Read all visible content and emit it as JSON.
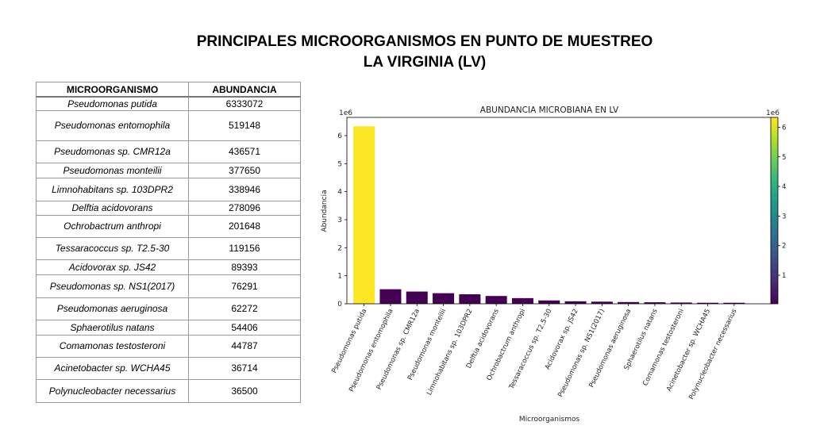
{
  "page": {
    "title_line1": "PRINCIPALES MICROORGANISMOS EN PUNTO DE MUESTREO",
    "title_line2": "LA VIRGINIA (LV)"
  },
  "table": {
    "headers": [
      "MICROORGANISMO",
      "ABUNDANCIA"
    ],
    "rows": [
      {
        "name": "Pseudomonas putida",
        "value": "6333072"
      },
      {
        "name": "Pseudomonas entomophila",
        "value": "519148"
      },
      {
        "name": "Pseudomonas sp. CMR12a",
        "value": "436571"
      },
      {
        "name": "Pseudomonas monteilii",
        "value": "377650"
      },
      {
        "name": "Limnohabitans sp. 103DPR2",
        "value": "338946"
      },
      {
        "name": "Delftia acidovorans",
        "value": "278096"
      },
      {
        "name": "Ochrobactrum anthropi",
        "value": "201648"
      },
      {
        "name": "Tessaracoccus sp. T2.5-30",
        "value": "119156"
      },
      {
        "name": "Acidovorax sp. JS42",
        "value": "89393"
      },
      {
        "name": "Pseudomonas sp. NS1(2017)",
        "value": "76291"
      },
      {
        "name": "Pseudomonas aeruginosa",
        "value": "62272"
      },
      {
        "name": "Sphaerotilus natans",
        "value": "54406"
      },
      {
        "name": "Comamonas testosteroni",
        "value": "44787"
      },
      {
        "name": "Acinetobacter sp. WCHA45",
        "value": "36714"
      },
      {
        "name": "Polynucleobacter necessarius",
        "value": "36500"
      }
    ]
  },
  "chart_data": {
    "type": "bar",
    "title": "ABUNDANCIA MICROBIANA EN LV",
    "xlabel": "Microorganismos",
    "ylabel": "Abundancia",
    "y_offset_label": "1e6",
    "ylim": [
      0,
      6.65
    ],
    "yticks": [
      0,
      1,
      2,
      3,
      4,
      5,
      6
    ],
    "categories": [
      "Pseudomonas putida",
      "Pseudomonas entomophila",
      "Pseudomonas sp. CMR12a",
      "Pseudomonas monteilii",
      "Limnohabitans sp. 103DPR2",
      "Delftia acidovorans",
      "Ochrobactrum anthropi",
      "Tessaracoccus sp. T2.5-30",
      "Acidovorax sp. JS42",
      "Pseudomonas sp. NS1(2017)",
      "Pseudomonas aeruginosa",
      "Sphaerotilus natans",
      "Comamonas testosteroni",
      "Acinetobacter sp. WCHA45",
      "Polynucleobacter necessarius"
    ],
    "values": [
      6.333072,
      0.519148,
      0.436571,
      0.37765,
      0.338946,
      0.278096,
      0.201648,
      0.119156,
      0.089393,
      0.076291,
      0.062272,
      0.054406,
      0.044787,
      0.036714,
      0.0365
    ],
    "colormap": "viridis",
    "bar_colors": {
      "high": "#fde725",
      "low": "#440154"
    },
    "colorbar": {
      "label": "1e6",
      "ticks": [
        1,
        2,
        3,
        4,
        5,
        6
      ],
      "range": [
        0.0365,
        6.333072
      ],
      "stops": [
        "#440154",
        "#482878",
        "#3e4989",
        "#31688e",
        "#26828e",
        "#1f9e89",
        "#35b779",
        "#6ece58",
        "#b5de2b",
        "#fde725"
      ]
    },
    "grid": false
  }
}
